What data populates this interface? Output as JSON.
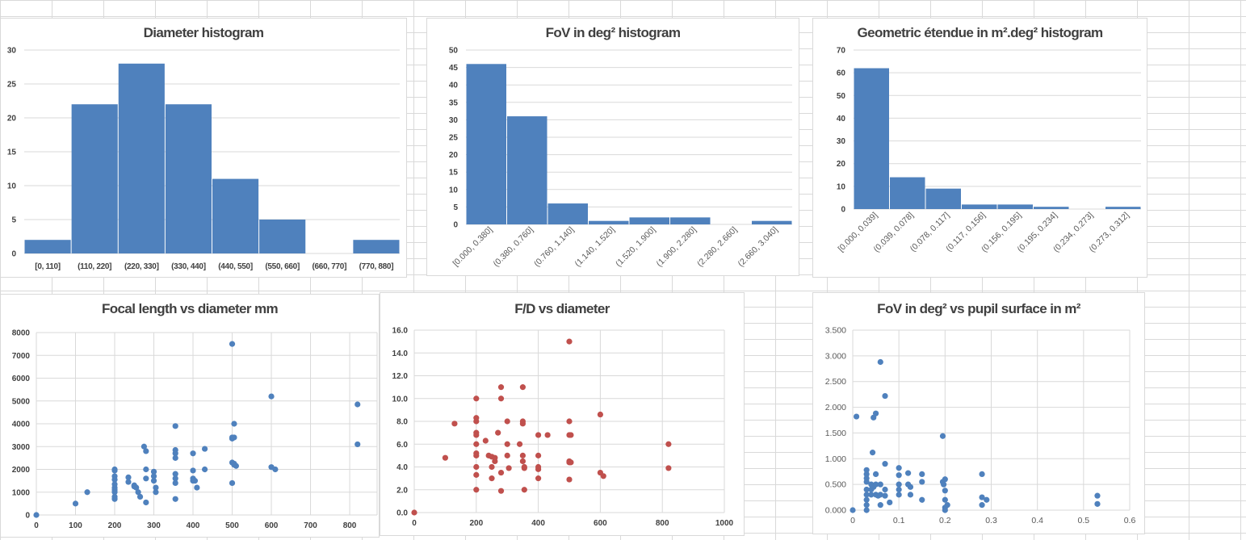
{
  "colors": {
    "blue": "#4f81bd",
    "red": "#c0504d",
    "grid": "#d9d9d9"
  },
  "chart_data": [
    {
      "id": "diameter",
      "type": "bar",
      "title": "Diameter histogram",
      "categories": [
        "[0, 110]",
        "(110, 220]",
        "(220, 330]",
        "(330, 440]",
        "(440, 550]",
        "(550, 660]",
        "(660, 770]",
        "(770, 880]"
      ],
      "values": [
        2,
        22,
        28,
        22,
        11,
        5,
        0,
        2
      ],
      "ylim": [
        0,
        30
      ],
      "yticks": [
        "0",
        "5",
        "10",
        "15",
        "20",
        "25",
        "30"
      ],
      "xlabel": "",
      "ylabel": ""
    },
    {
      "id": "fov",
      "type": "bar",
      "title": "FoV in deg² histogram",
      "categories": [
        "[0.000, 0.380]",
        "(0.380, 0.760]",
        "(0.760, 1.140]",
        "(1.140, 1.520]",
        "(1.520, 1.900]",
        "(1.900, 2.280]",
        "(2.280, 2.660]",
        "(2.660, 3.040]"
      ],
      "values": [
        46,
        31,
        6,
        1,
        2,
        2,
        0,
        1
      ],
      "ylim": [
        0,
        50
      ],
      "yticks": [
        "0",
        "5",
        "10",
        "15",
        "20",
        "25",
        "30",
        "35",
        "40",
        "45",
        "50"
      ],
      "xlabel": "",
      "ylabel": ""
    },
    {
      "id": "etendue",
      "type": "bar",
      "title": "Geometric étendue in m².deg² histogram",
      "categories": [
        "[0.000, 0.039]",
        "(0.039, 0.078]",
        "(0.078, 0.117]",
        "(0.117, 0.156]",
        "(0.156, 0.195]",
        "(0.195, 0.234]",
        "(0.234, 0.273]",
        "(0.273, 0.312]"
      ],
      "values": [
        62,
        14,
        9,
        2,
        2,
        1,
        0,
        1
      ],
      "ylim": [
        0,
        70
      ],
      "yticks": [
        "0",
        "10",
        "20",
        "30",
        "40",
        "50",
        "60",
        "70"
      ],
      "xlabel": "",
      "ylabel": ""
    },
    {
      "id": "focal",
      "type": "scatter",
      "title": "Focal length vs diameter mm",
      "xlim": [
        0,
        870
      ],
      "ylim": [
        0,
        8000
      ],
      "xticks": [
        "0",
        "100",
        "200",
        "300",
        "400",
        "500",
        "600",
        "700",
        "800"
      ],
      "yticks": [
        "0",
        "1000",
        "2000",
        "3000",
        "4000",
        "5000",
        "6000",
        "7000",
        "8000"
      ],
      "x": [
        0,
        100,
        130,
        200,
        200,
        200,
        200,
        200,
        200,
        200,
        200,
        200,
        200,
        235,
        235,
        250,
        250,
        255,
        260,
        265,
        275,
        280,
        280,
        280,
        280,
        300,
        300,
        300,
        305,
        305,
        355,
        355,
        355,
        355,
        355,
        355,
        355,
        355,
        400,
        400,
        400,
        400,
        405,
        410,
        430,
        430,
        500,
        500,
        500,
        500,
        500,
        505,
        505,
        505,
        505,
        510,
        600,
        600,
        610,
        820,
        820
      ],
      "y": [
        0,
        500,
        1000,
        2000,
        1950,
        1700,
        1550,
        1350,
        1200,
        1100,
        1000,
        800,
        700,
        1650,
        1450,
        1300,
        1250,
        1200,
        1000,
        800,
        3000,
        2800,
        2000,
        1600,
        550,
        1900,
        1700,
        1500,
        1200,
        1000,
        3900,
        2850,
        2700,
        2500,
        1800,
        1600,
        1400,
        700,
        2700,
        1950,
        1600,
        1500,
        1500,
        1200,
        2900,
        2000,
        7500,
        3400,
        3350,
        2300,
        1400,
        4000,
        3400,
        2250,
        2200,
        2150,
        5200,
        2100,
        2000,
        4850,
        3100
      ],
      "xlabel": "",
      "ylabel": ""
    },
    {
      "id": "fd",
      "type": "scatter",
      "title": "F/D vs diameter",
      "xlim": [
        0,
        1000
      ],
      "ylim": [
        0,
        16
      ],
      "xticks": [
        "0",
        "200",
        "400",
        "600",
        "800",
        "1000"
      ],
      "yticks": [
        "0.0",
        "2.0",
        "4.0",
        "6.0",
        "8.0",
        "10.0",
        "12.0",
        "14.0",
        "16.0"
      ],
      "x": [
        0,
        100,
        130,
        200,
        200,
        200,
        200,
        200,
        200,
        200,
        200,
        200,
        200,
        200,
        230,
        240,
        250,
        250,
        250,
        260,
        260,
        270,
        280,
        280,
        280,
        280,
        300,
        300,
        300,
        305,
        340,
        350,
        350,
        350,
        350,
        350,
        355,
        355,
        355,
        400,
        400,
        400,
        400,
        400,
        430,
        500,
        500,
        500,
        500,
        500,
        500,
        505,
        505,
        600,
        600,
        610,
        820,
        820
      ],
      "y": [
        0,
        4.8,
        7.8,
        10,
        8.3,
        8,
        7,
        6.8,
        6,
        5,
        4,
        3.3,
        2,
        5.2,
        6.3,
        5,
        4.9,
        4,
        3,
        4.8,
        4.5,
        7,
        11,
        10,
        1.9,
        3.5,
        8,
        6,
        5,
        3.9,
        6,
        11,
        8,
        7.8,
        5,
        4.5,
        4,
        3.9,
        2,
        6.8,
        5,
        4,
        3.8,
        3,
        6.8,
        15,
        8,
        6.8,
        4.5,
        4.4,
        2.9,
        6.8,
        4.4,
        8.6,
        3.5,
        3.2,
        6,
        3.9
      ],
      "xlabel": "",
      "ylabel": ""
    },
    {
      "id": "fovpupil",
      "type": "scatter",
      "title": "FoV in deg² vs pupil surface in m²",
      "xlim": [
        0,
        0.6
      ],
      "ylim": [
        0,
        3.5
      ],
      "xticks": [
        "0",
        "0.1",
        "0.2",
        "0.3",
        "0.4",
        "0.5",
        "0.6"
      ],
      "yticks": [
        "0.000",
        "0.500",
        "1.000",
        "1.500",
        "2.000",
        "2.500",
        "3.000",
        "3.500"
      ],
      "x": [
        0,
        0.008,
        0.03,
        0.03,
        0.03,
        0.03,
        0.03,
        0.03,
        0.03,
        0.03,
        0.03,
        0.04,
        0.04,
        0.04,
        0.043,
        0.045,
        0.045,
        0.05,
        0.05,
        0.05,
        0.05,
        0.055,
        0.06,
        0.06,
        0.06,
        0.06,
        0.07,
        0.07,
        0.07,
        0.07,
        0.08,
        0.1,
        0.1,
        0.1,
        0.1,
        0.1,
        0.12,
        0.12,
        0.125,
        0.125,
        0.15,
        0.15,
        0.15,
        0.195,
        0.195,
        0.197,
        0.2,
        0.2,
        0.2,
        0.2,
        0.2,
        0.205,
        0.28,
        0.28,
        0.28,
        0.29,
        0.53,
        0.53
      ],
      "y": [
        0,
        1.82,
        0.78,
        0.7,
        0.62,
        0.55,
        0.4,
        0.3,
        0.2,
        0.1,
        0,
        0.5,
        0.4,
        0.3,
        1.12,
        1.8,
        0.45,
        1.88,
        0.7,
        0.5,
        0.3,
        0.28,
        2.88,
        0.5,
        0.3,
        0.1,
        2.22,
        0.9,
        0.4,
        0.28,
        0.15,
        0.82,
        0.68,
        0.5,
        0.4,
        0.3,
        0.72,
        0.5,
        0.45,
        0.3,
        0.7,
        0.55,
        0.2,
        1.44,
        0.55,
        0.5,
        0.6,
        0.38,
        0.2,
        0.05,
        0,
        0.1,
        0.7,
        0.25,
        0.1,
        0.2,
        0.28,
        0.12
      ],
      "xlabel": "",
      "ylabel": ""
    }
  ]
}
